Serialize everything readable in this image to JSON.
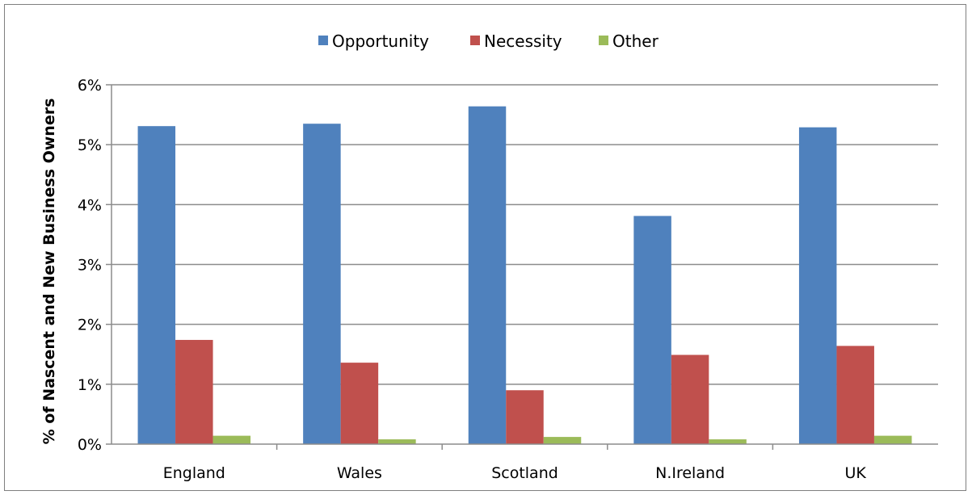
{
  "chart_data": {
    "type": "bar",
    "title": "",
    "xlabel": "",
    "ylabel": "% of Nascent and New Business Owners",
    "categories": [
      "England",
      "Wales",
      "Scotland",
      "N.Ireland",
      "UK"
    ],
    "series": [
      {
        "name": "Opportunity",
        "color": "#4f81bd",
        "values": [
          5.31,
          5.35,
          5.64,
          3.81,
          5.29
        ]
      },
      {
        "name": "Necessity",
        "color": "#c0504d",
        "values": [
          1.74,
          1.36,
          0.9,
          1.49,
          1.64
        ]
      },
      {
        "name": "Other",
        "color": "#9bbb59",
        "values": [
          0.14,
          0.08,
          0.12,
          0.08,
          0.14
        ]
      }
    ],
    "ylim": [
      0,
      6
    ],
    "yticks": [
      "0%",
      "1%",
      "2%",
      "3%",
      "4%",
      "5%",
      "6%"
    ],
    "grid": true,
    "legend_position": "top-center"
  }
}
